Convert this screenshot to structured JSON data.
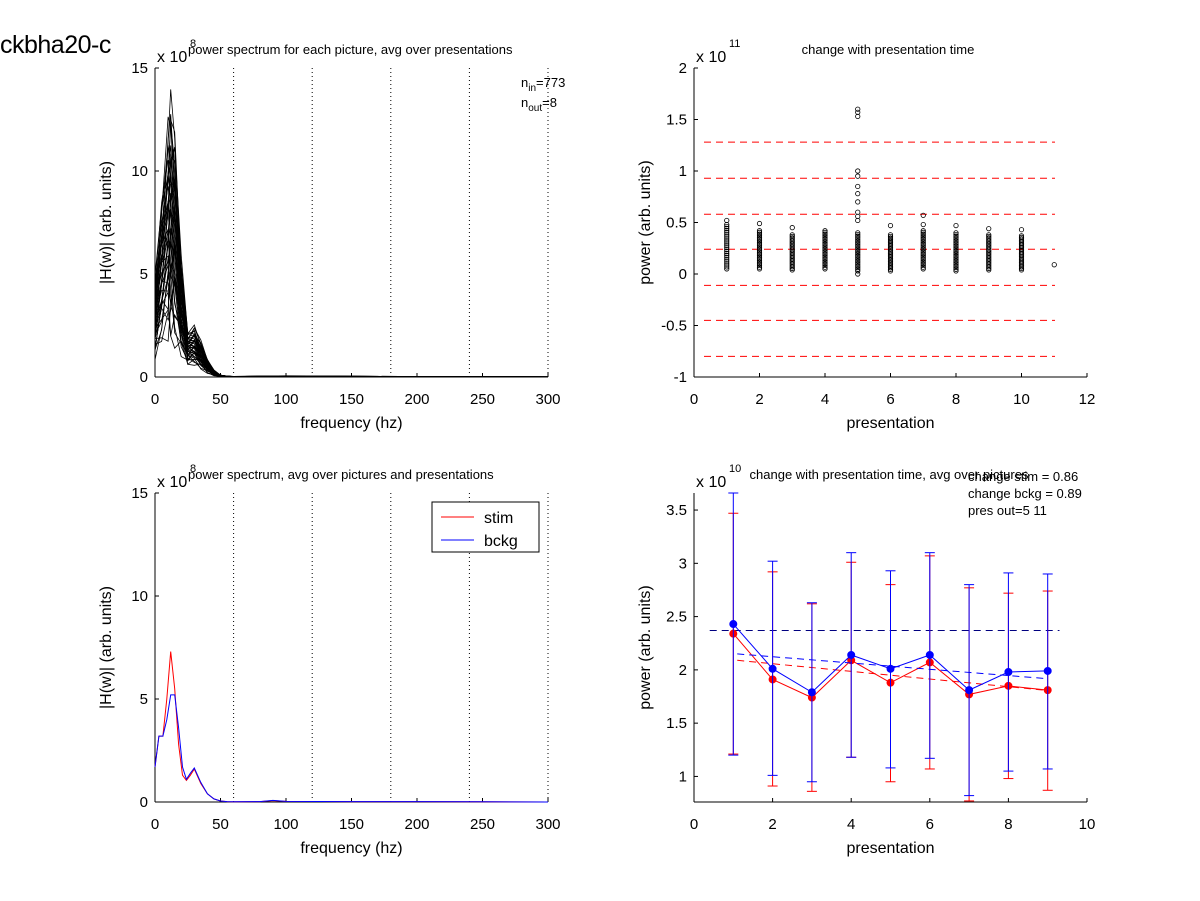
{
  "figure": {
    "title": "ckbha20-c"
  },
  "chart_data": [
    {
      "type": "line",
      "title": "power spectrum for each picture, avg over presentations",
      "xlabel": "frequency (hz)",
      "ylabel": "|H(w)| (arb. units)",
      "xlim": [
        0,
        300
      ],
      "ylim": [
        0,
        15
      ],
      "xticks": [
        0,
        50,
        100,
        150,
        200,
        250,
        300
      ],
      "yticks": [
        0,
        5,
        10,
        15
      ],
      "exponent_label": "x 10",
      "exponent_power": "8",
      "vlines": [
        60,
        120,
        180,
        240,
        300
      ],
      "annotations": [
        {
          "base": "n",
          "sub": "in",
          "text": "=773"
        },
        {
          "base": "n",
          "sub": "out",
          "text": "=8"
        }
      ],
      "series_note": "773 overlapping black spectra, peak near 10 hz reaching about 14",
      "envelope": {
        "x": [
          0,
          5,
          10,
          12,
          15,
          20,
          25,
          30,
          35,
          40,
          45,
          50,
          55,
          60,
          100,
          150,
          200,
          250,
          300
        ],
        "y_low": [
          0.7,
          1.2,
          1.5,
          1.4,
          1.2,
          0.8,
          0.5,
          0.5,
          0.35,
          0.15,
          0.05,
          0.02,
          0.01,
          0,
          0,
          0,
          0,
          0,
          0
        ],
        "y_high": [
          5.0,
          9.0,
          13.0,
          14.0,
          12.5,
          6.0,
          2.3,
          2.6,
          1.8,
          0.9,
          0.35,
          0.1,
          0.05,
          0.03,
          0.06,
          0.04,
          0.03,
          0.02,
          0.01
        ]
      }
    },
    {
      "type": "scatter",
      "title": "change with presentation time",
      "xlabel": "presentation",
      "ylabel": "power (arb. units)",
      "xlim": [
        0,
        12
      ],
      "ylim": [
        -1,
        2
      ],
      "xticks": [
        0,
        2,
        4,
        6,
        8,
        10,
        12
      ],
      "yticks": [
        -1,
        -0.5,
        0,
        0.5,
        1,
        1.5,
        2
      ],
      "exponent_label": "x 10",
      "exponent_power": "11",
      "hlines": [
        1.28,
        0.93,
        0.58,
        0.24,
        -0.11,
        -0.45,
        -0.8
      ],
      "columns": [
        {
          "x": 1,
          "min": 0.05,
          "max": 0.48,
          "outliers": [
            0.52
          ]
        },
        {
          "x": 2,
          "min": 0.05,
          "max": 0.42,
          "outliers": [
            0.49
          ]
        },
        {
          "x": 3,
          "min": 0.04,
          "max": 0.38,
          "outliers": [
            0.45
          ]
        },
        {
          "x": 4,
          "min": 0.05,
          "max": 0.42,
          "outliers": []
        },
        {
          "x": 5,
          "min": 0.03,
          "max": 0.4,
          "outliers": [
            1.6,
            1.57,
            1.53,
            1.0,
            0.95,
            0.85,
            0.78,
            0.7,
            0.6,
            0.56,
            0.52,
            0.0
          ]
        },
        {
          "x": 6,
          "min": 0.03,
          "max": 0.38,
          "outliers": [
            0.47
          ]
        },
        {
          "x": 7,
          "min": 0.05,
          "max": 0.42,
          "outliers": [
            0.57,
            0.48
          ]
        },
        {
          "x": 8,
          "min": 0.03,
          "max": 0.4,
          "outliers": [
            0.47
          ]
        },
        {
          "x": 9,
          "min": 0.04,
          "max": 0.38,
          "outliers": [
            0.44
          ]
        },
        {
          "x": 10,
          "min": 0.04,
          "max": 0.37,
          "outliers": [
            0.43
          ]
        },
        {
          "x": 11,
          "min": 0.09,
          "max": 0.09,
          "outliers": []
        }
      ]
    },
    {
      "type": "line",
      "title": "power spectrum, avg over pictures and presentations",
      "xlabel": "frequency (hz)",
      "ylabel": "|H(w)| (arb. units)",
      "xlim": [
        0,
        300
      ],
      "ylim": [
        0,
        15
      ],
      "xticks": [
        0,
        50,
        100,
        150,
        200,
        250,
        300
      ],
      "yticks": [
        0,
        5,
        10,
        15
      ],
      "exponent_label": "x 10",
      "exponent_power": "8",
      "vlines": [
        60,
        120,
        180,
        240,
        300
      ],
      "legend": "top-right",
      "x": [
        0,
        3,
        6,
        9,
        12,
        15,
        18,
        21,
        24,
        27,
        30,
        35,
        40,
        45,
        50,
        55,
        60,
        80,
        90,
        100,
        150,
        200,
        250,
        300
      ],
      "series": [
        {
          "name": "stim",
          "color": "#ff0000",
          "values": [
            1.7,
            3.2,
            3.2,
            5.0,
            7.3,
            5.5,
            2.8,
            1.3,
            1.05,
            1.3,
            1.6,
            0.9,
            0.4,
            0.15,
            0.05,
            0.02,
            0.01,
            0.02,
            0.07,
            0.03,
            0.02,
            0.02,
            0.01,
            0.0
          ]
        },
        {
          "name": "bckg",
          "color": "#0000ff",
          "values": [
            1.7,
            3.2,
            3.2,
            4.0,
            5.2,
            5.2,
            3.6,
            1.7,
            1.1,
            1.4,
            1.65,
            0.95,
            0.4,
            0.15,
            0.05,
            0.02,
            0.01,
            0.02,
            0.08,
            0.03,
            0.02,
            0.02,
            0.01,
            0.0
          ]
        }
      ]
    },
    {
      "type": "line",
      "title": "change with presentation time, avg over pictures",
      "xlabel": "presentation",
      "ylabel": "power (arb. units)",
      "xlim": [
        0,
        10
      ],
      "ylim": [
        0.76,
        3.66
      ],
      "xticks": [
        0,
        2,
        4,
        6,
        8,
        10
      ],
      "yticks": [
        1,
        1.5,
        2,
        2.5,
        3,
        3.5
      ],
      "exponent_label": "x 10",
      "exponent_power": "10",
      "text_lines": [
        "change stim = 0.86",
        "change bckg = 0.89",
        "pres out=5 11"
      ],
      "x": [
        1,
        2,
        3,
        4,
        5,
        6,
        7,
        8,
        9
      ],
      "series": [
        {
          "name": "stim",
          "color": "#ff0000",
          "values": [
            2.34,
            1.91,
            1.74,
            2.09,
            1.88,
            2.07,
            1.77,
            1.85,
            1.81
          ],
          "err_upper": [
            3.47,
            2.92,
            2.62,
            3.01,
            2.8,
            3.07,
            2.77,
            2.72,
            2.74
          ],
          "err_lower": [
            1.21,
            0.91,
            0.86,
            1.18,
            0.95,
            1.07,
            0.77,
            0.98,
            0.87
          ],
          "trend": [
            2.09,
            1.81
          ]
        },
        {
          "name": "bckg",
          "color": "#0000ff",
          "values": [
            2.43,
            2.01,
            1.79,
            2.14,
            2.01,
            2.14,
            1.81,
            1.98,
            1.99
          ],
          "err_upper": [
            3.66,
            3.02,
            2.63,
            3.1,
            2.93,
            3.1,
            2.8,
            2.91,
            2.9
          ],
          "err_lower": [
            1.2,
            1.01,
            0.95,
            1.18,
            1.08,
            1.17,
            0.82,
            1.05,
            1.07
          ],
          "trend": [
            2.15,
            1.92
          ]
        }
      ],
      "hline": 2.37,
      "hline_color": "#000080"
    }
  ]
}
